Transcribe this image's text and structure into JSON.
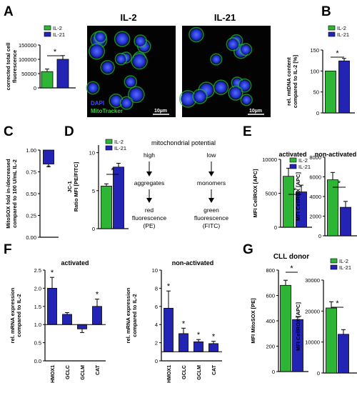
{
  "colors": {
    "il2": "#2fb536",
    "il21": "#2323b4",
    "axis": "#000000",
    "micro_bg": "#030303"
  },
  "legend_labels": [
    "IL-2",
    "IL-21"
  ],
  "panel_letters": {
    "A": "A",
    "B": "B",
    "C": "C",
    "D": "D",
    "E": "E",
    "F": "F",
    "G": "G"
  },
  "significance": "*",
  "micrographs": [
    {
      "title": "IL-2",
      "dapi_label": "DAPI",
      "mito_label": "MitoTracker",
      "scalebar": "10µm"
    },
    {
      "title": "IL-21",
      "scalebar": "10µm"
    }
  ],
  "mito_diagram": {
    "title": "mitochondrial potential",
    "left": {
      "potential": "high",
      "state": "aggregates",
      "result_line1": "red",
      "result_line2": "fluorescence",
      "result_line3": "(PE)"
    },
    "right": {
      "potential": "low",
      "state": "monomers",
      "result_line1": "green",
      "result_line2": "fluorescence",
      "result_line3": "(FITC)"
    }
  },
  "cll_donor_label": "CLL donor",
  "chart_data": [
    {
      "panel": "A",
      "type": "bar",
      "categories": [
        "IL-2",
        "IL-21"
      ],
      "values": [
        57000,
        100000
      ],
      "errors": [
        9000,
        13000
      ],
      "ylim": [
        0,
        150000
      ],
      "yticks": [
        0,
        50000,
        100000,
        150000
      ],
      "ylabel": "corrected total cell fluorescence",
      "legend": "top-left",
      "significant": true
    },
    {
      "panel": "B",
      "type": "bar",
      "categories": [
        "IL-2",
        "IL-21"
      ],
      "values": [
        100,
        124
      ],
      "errors": [
        0,
        6
      ],
      "ylim": [
        0,
        150
      ],
      "yticks": [
        0,
        50,
        100,
        150
      ],
      "ylabel": "rel. mtDNA content compared to IL-2 [%]",
      "legend": "top-right",
      "significant": true
    },
    {
      "panel": "C",
      "type": "bar",
      "categories": [
        "IL-21"
      ],
      "baseline": 1.0,
      "values": [
        0.84
      ],
      "errors": [
        0.03
      ],
      "ylim": [
        0.0,
        1.0
      ],
      "yticks": [
        0.0,
        0.25,
        0.5,
        0.75,
        1.0
      ],
      "ylabel": "MitoSOX fold in-/decreased compared to 100 U/mL IL-2",
      "significant": true
    },
    {
      "panel": "D",
      "type": "bar",
      "categories": [
        "IL-2",
        "IL-21"
      ],
      "values": [
        5.6,
        8.1
      ],
      "errors": [
        0.3,
        0.5
      ],
      "ylim": [
        0,
        11
      ],
      "yticks": [
        0,
        5,
        10
      ],
      "ylabel": "JC-1 Ratio MFI [PE/FITC]",
      "legend": "top-left",
      "significant": true
    },
    {
      "panel": "E",
      "subtitle": "activated",
      "type": "bar",
      "categories": [
        "IL-2",
        "IL-21"
      ],
      "values": [
        7500,
        5200
      ],
      "errors": [
        1200,
        1000
      ],
      "ylim": [
        0,
        10000
      ],
      "yticks": [
        0,
        5000,
        10000
      ],
      "ylabel": "MFI CellROX [APC]",
      "legend": "top-right",
      "significant": true
    },
    {
      "panel": "E",
      "subtitle": "non-activated",
      "type": "bar",
      "categories": [
        "IL-2",
        "IL-21"
      ],
      "values": [
        5700,
        2900
      ],
      "errors": [
        750,
        600
      ],
      "ylim": [
        0,
        8000
      ],
      "yticks": [
        0,
        2000,
        4000,
        6000,
        8000
      ],
      "ylabel": "MFI CellROX [APC]",
      "significant": true
    },
    {
      "panel": "F",
      "subtitle": "activated",
      "type": "bar",
      "baseline": 1.0,
      "categories": [
        "HMOX1",
        "GCLC",
        "GCLM",
        "CAT"
      ],
      "values": [
        2.0,
        1.28,
        0.88,
        1.5
      ],
      "errors": [
        0.3,
        0.05,
        0.1,
        0.2
      ],
      "stars": [
        true,
        false,
        false,
        true
      ],
      "ylim": [
        0.0,
        2.5
      ],
      "yticks": [
        0.0,
        0.5,
        1.0,
        1.5,
        2.0,
        2.5
      ],
      "ylabel": "rel. mRNA expression compared to IL-2"
    },
    {
      "panel": "F",
      "subtitle": "non-activated",
      "type": "bar",
      "baseline": 1.0,
      "categories": [
        "HMOX1",
        "GCLC",
        "GCLM",
        "CAT"
      ],
      "values": [
        5.8,
        3.0,
        2.1,
        1.9
      ],
      "errors": [
        1.9,
        0.6,
        0.25,
        0.25
      ],
      "stars": [
        true,
        true,
        true,
        true
      ],
      "ylim": [
        0,
        10
      ],
      "yticks": [
        0,
        2,
        4,
        6,
        8,
        10
      ],
      "ylabel": "rel. mRNA expression compared to IL-2"
    },
    {
      "panel": "G",
      "type": "bar",
      "categories": [
        "IL-2",
        "IL-21"
      ],
      "values": [
        680,
        410
      ],
      "errors": [
        40,
        20
      ],
      "ylim": [
        0,
        800
      ],
      "yticks": [
        0,
        200,
        400,
        600,
        800
      ],
      "ylabel": "MFI MitoSOX [PE]",
      "significant": true
    },
    {
      "panel": "G",
      "type": "bar",
      "categories": [
        "IL-2",
        "IL-21"
      ],
      "values": [
        21000,
        12500
      ],
      "errors": [
        2000,
        1500
      ],
      "ylim": [
        0,
        30000
      ],
      "yticks": [
        0,
        10000,
        20000,
        30000
      ],
      "ylabel": "MFI CellROX [APC]",
      "legend": "top-right",
      "significant": true
    }
  ]
}
